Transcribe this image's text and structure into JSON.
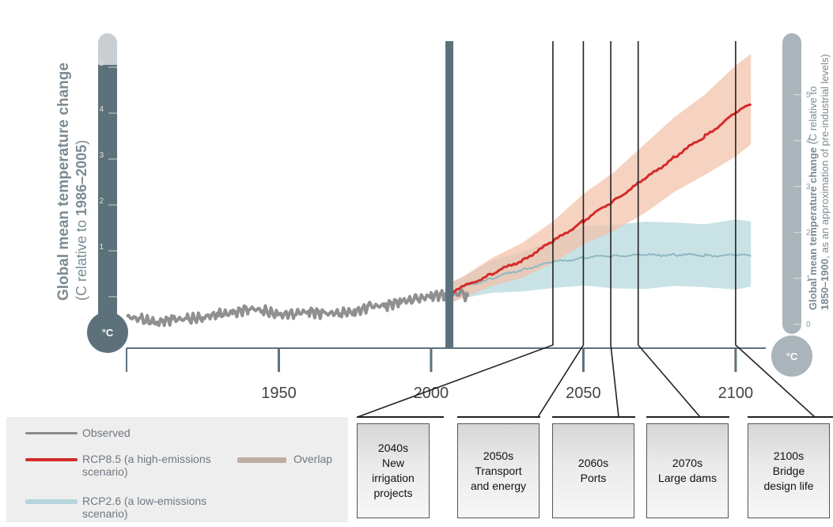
{
  "chart_data": {
    "type": "line",
    "title": "",
    "xlabel": "",
    "xlim": [
      1900,
      2106
    ],
    "x_ticks": [
      "1950",
      "2000",
      "2050",
      "2100"
    ],
    "left_axis": {
      "ylabel": "Global mean temperature change",
      "ylabel_sub": "(C relative to 1986–2005)",
      "range": [
        -0.6,
        5.3
      ],
      "ticks": [
        "1",
        "2",
        "3",
        "4",
        "5"
      ],
      "bulb_label": "°C"
    },
    "right_axis": {
      "ylabel": "Global mean temperature change",
      "ylabel_sub_1": " (C relative to",
      "ylabel_sub_2": "1850–1900",
      "ylabel_sub_3": ", as an approximation of pre-industrial levels)",
      "ticks": [
        "0",
        "1",
        "2",
        "3",
        "4",
        "5"
      ],
      "bulb_label": "°C"
    },
    "present_marker_x": 2006,
    "series": [
      {
        "name": "Observed",
        "color": "#909090",
        "x": [
          1900,
          1905,
          1910,
          1915,
          1920,
          1925,
          1930,
          1935,
          1940,
          1945,
          1950,
          1955,
          1960,
          1965,
          1970,
          1975,
          1980,
          1985,
          1990,
          1995,
          2000,
          2005,
          2010,
          2012
        ],
        "y": [
          -0.43,
          -0.5,
          -0.56,
          -0.49,
          -0.49,
          -0.45,
          -0.38,
          -0.36,
          -0.25,
          -0.3,
          -0.4,
          -0.36,
          -0.32,
          -0.37,
          -0.35,
          -0.33,
          -0.21,
          -0.19,
          -0.1,
          -0.06,
          0.02,
          0.05,
          0.07,
          0.0
        ]
      },
      {
        "name": "RCP8.5 (a high-emissions scenario)",
        "color": "#d42a2a",
        "band_color": "#f2c0a8",
        "x": [
          2006,
          2010,
          2020,
          2030,
          2040,
          2050,
          2060,
          2070,
          2080,
          2090,
          2100,
          2105
        ],
        "y": [
          0.1,
          0.2,
          0.5,
          0.8,
          1.2,
          1.65,
          2.1,
          2.55,
          3.05,
          3.5,
          4.0,
          4.2
        ],
        "low": [
          -0.1,
          -0.05,
          0.2,
          0.45,
          0.75,
          1.1,
          1.45,
          1.85,
          2.25,
          2.65,
          3.1,
          3.3
        ],
        "high": [
          0.3,
          0.45,
          0.8,
          1.2,
          1.65,
          2.2,
          2.75,
          3.3,
          3.9,
          4.45,
          5.0,
          5.3
        ]
      },
      {
        "name": "RCP2.6 (a low-emissions scenario)",
        "color": "#8fb8c0",
        "band_color": "#c0dde2",
        "x": [
          2006,
          2010,
          2020,
          2030,
          2040,
          2050,
          2060,
          2070,
          2080,
          2090,
          2100,
          2105
        ],
        "y": [
          0.1,
          0.2,
          0.4,
          0.6,
          0.75,
          0.85,
          0.9,
          0.9,
          0.92,
          0.9,
          0.9,
          0.9
        ],
        "low": [
          -0.1,
          -0.05,
          0.05,
          0.15,
          0.2,
          0.2,
          0.2,
          0.2,
          0.2,
          0.2,
          0.2,
          0.2
        ],
        "high": [
          0.3,
          0.45,
          0.75,
          1.0,
          1.25,
          1.5,
          1.6,
          1.62,
          1.6,
          1.62,
          1.65,
          1.65
        ]
      }
    ],
    "legend": {
      "placement": "bottom-left",
      "observed": "Observed",
      "rcp85_1": "RCP8.5 (a high-emissions",
      "rcp85_2": "scenario)",
      "overlap": "Overlap",
      "rcp26_1": "RCP2.6 (a low-emissions",
      "rcp26_2": "scenario)",
      "overlap_color": "#bfaea2"
    },
    "annotations": [
      {
        "year": 2040,
        "lines": [
          "2040s",
          "New",
          "irrigation",
          "projects"
        ]
      },
      {
        "year": 2050,
        "lines": [
          "2050s",
          "Transport",
          "and energy"
        ]
      },
      {
        "year": 2059,
        "lines": [
          "2060s",
          "Ports"
        ]
      },
      {
        "year": 2068,
        "lines": [
          "2070s",
          "Large dams"
        ]
      },
      {
        "year": 2100,
        "lines": [
          "2100s",
          "Bridge",
          "design life"
        ]
      }
    ]
  },
  "colors": {
    "thermometer": "#5d717b",
    "thermometer_light": "#a9b5bb",
    "thermometer_cap": "#c8ced2",
    "axis": "#5d717b",
    "tick_text": "#5d717b"
  }
}
